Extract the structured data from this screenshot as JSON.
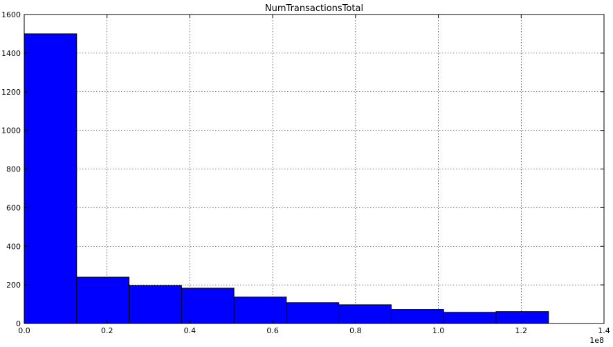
{
  "chart_data": {
    "type": "bar",
    "title": "NumTransactionsTotal",
    "xlabel": "",
    "ylabel": "",
    "x_offset_label": "1e8",
    "xlim": [
      0,
      1.4
    ],
    "ylim": [
      0,
      1600
    ],
    "xticks": [
      "0.0",
      "0.2",
      "0.4",
      "0.6",
      "0.8",
      "1.0",
      "1.2",
      "1.4"
    ],
    "yticks": [
      "0",
      "200",
      "400",
      "600",
      "800",
      "1000",
      "1200",
      "1400",
      "1600"
    ],
    "grid": true,
    "bin_edges": [
      0.0,
      0.1266,
      0.2532,
      0.3798,
      0.5064,
      0.633,
      0.7596,
      0.8862,
      1.0128,
      1.1394,
      1.266
    ],
    "values": [
      1500,
      240,
      197,
      183,
      137,
      108,
      97,
      73,
      58,
      62
    ],
    "bar_color": "#0000ff",
    "edge_color": "#000000"
  }
}
